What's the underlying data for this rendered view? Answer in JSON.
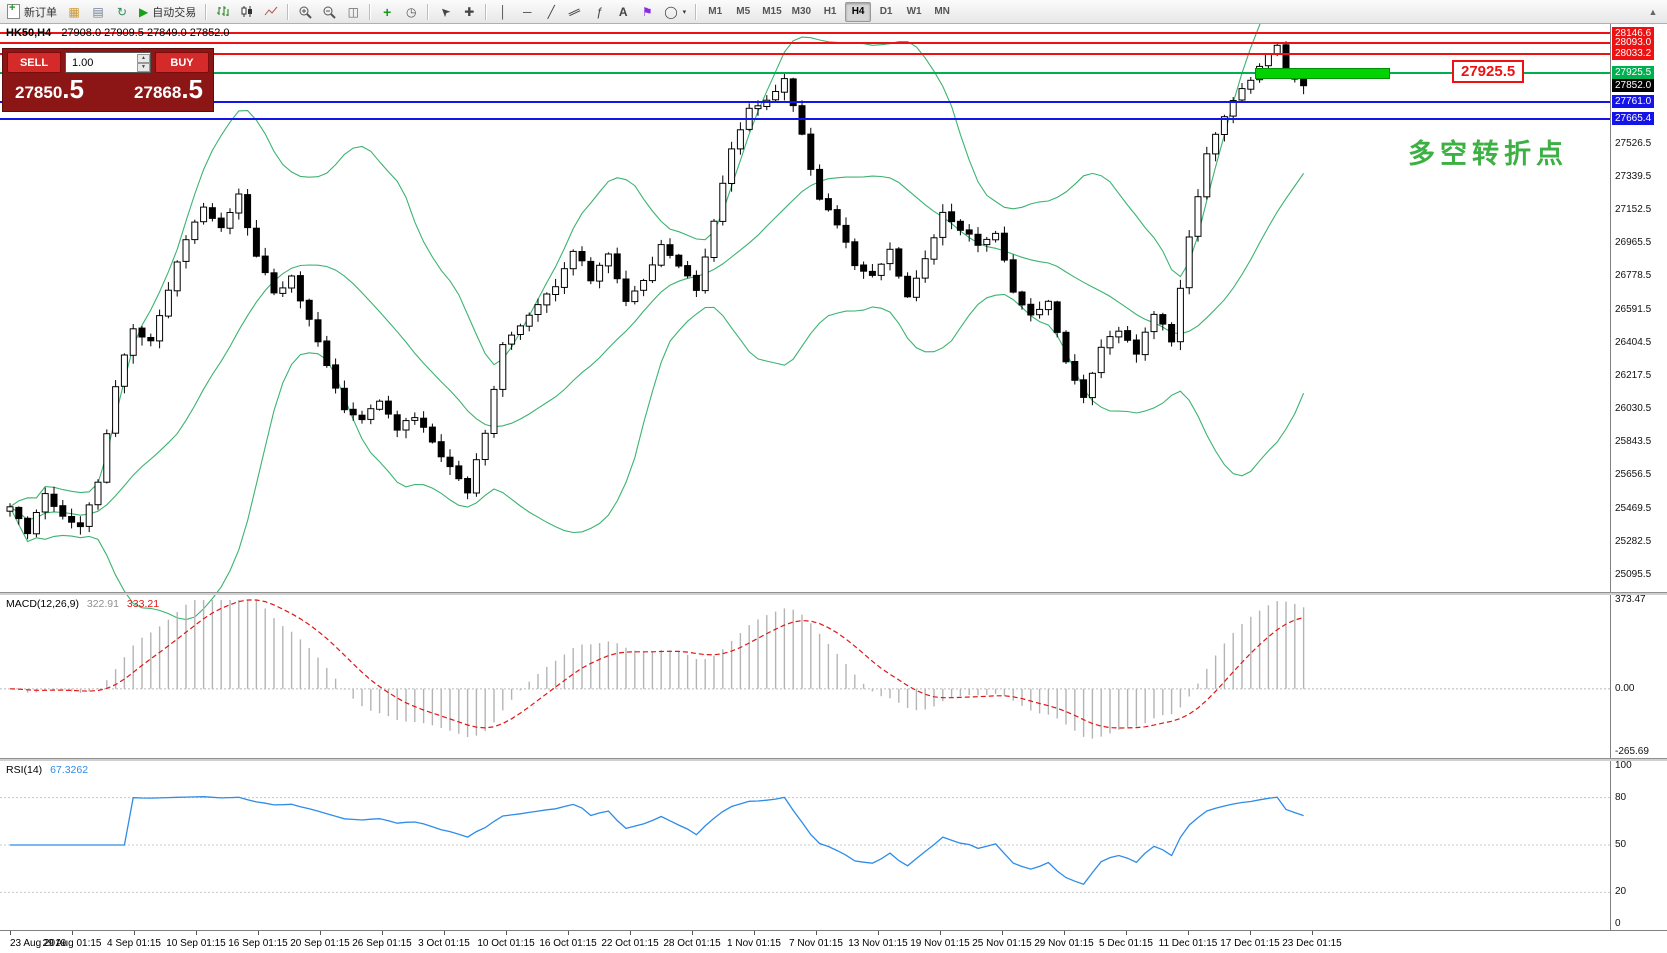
{
  "toolbar": {
    "new_order_label": "新订单",
    "autotrading_label": "自动交易",
    "timeframes": [
      "M1",
      "M5",
      "M15",
      "M30",
      "H1",
      "H4",
      "D1",
      "W1",
      "MN"
    ],
    "active_timeframe": "H4"
  },
  "chart": {
    "symbol_title": "HK50,H4",
    "ohlc_text": "27908.0 27909.5 27849.0 27852.0",
    "annotation_text": "多空转折点",
    "annotation_color": "#3cb043",
    "price_callout": "27925.5",
    "callout_color": "#ee1111",
    "highlight": {
      "price": 27925.5,
      "color": "#00d300"
    }
  },
  "trade_panel": {
    "sell_label": "SELL",
    "buy_label": "BUY",
    "volume": "1.00",
    "panel_color": "#8c1616",
    "button_color": "#d42a2a",
    "sell_price": {
      "main": "27850",
      "big": ".5"
    },
    "buy_price": {
      "main": "27868",
      "big": ".5"
    }
  },
  "levels": [
    {
      "label": "28146.6",
      "price": 28146.6,
      "color": "#ee1111",
      "type": "line"
    },
    {
      "label": "28093.0",
      "price": 28093.0,
      "color": "#ee1111",
      "type": "line"
    },
    {
      "label": "28033.2",
      "price": 28033.2,
      "color": "#ee1111",
      "type": "line"
    },
    {
      "label": "27925.5",
      "price": 27925.5,
      "color": "#00b050",
      "type": "line"
    },
    {
      "label": "27852.0",
      "price": 27852.0,
      "color": "#000000",
      "type": "bid"
    },
    {
      "label": "27761.0",
      "price": 27761.0,
      "color": "#1414e8",
      "type": "line"
    },
    {
      "label": "27665.4",
      "price": 27665.4,
      "color": "#1414e8",
      "type": "line"
    }
  ],
  "main_scale": {
    "max_price": 28200,
    "min_price": 25000,
    "gridlines": [
      "27526.5",
      "27339.5",
      "27152.5",
      "26965.5",
      "26778.5",
      "26591.5",
      "26404.5",
      "26217.5",
      "26030.5",
      "25843.5",
      "25656.5",
      "25469.5",
      "25282.5",
      "25095.5"
    ]
  },
  "macd_panel": {
    "name": "MACD(12,26,9)",
    "value1": "322.91",
    "value2": "333.21",
    "value1_color": "#909090",
    "histogram_color": "#b4b4b4",
    "signal_color": "#e01616",
    "scale": [
      "373.47",
      "0.00",
      "-265.69"
    ]
  },
  "rsi_panel": {
    "name": "RSI(14)",
    "value": "67.3262",
    "line_color": "#2f8ce8",
    "scale": [
      "100",
      "80",
      "50",
      "20",
      "0"
    ],
    "levels": [
      80,
      50,
      20
    ]
  },
  "time_axis": [
    "23 Aug 2019",
    "29 Aug 01:15",
    "4 Sep 01:15",
    "10 Sep 01:15",
    "16 Sep 01:15",
    "20 Sep 01:15",
    "26 Sep 01:15",
    "3 Oct 01:15",
    "10 Oct 01:15",
    "16 Oct 01:15",
    "22 Oct 01:15",
    "28 Oct 01:15",
    "1 Nov 01:15",
    "7 Nov 01:15",
    "13 Nov 01:15",
    "19 Nov 01:15",
    "25 Nov 01:15",
    "29 Nov 01:15",
    "5 Dec 01:15",
    "11 Dec 01:15",
    "17 Dec 01:15",
    "23 Dec 01:15"
  ],
  "chart_data": {
    "type": "candlestick",
    "symbol": "HK50",
    "timeframe": "H4",
    "last_ohlc": {
      "open": 27908.0,
      "high": 27909.5,
      "low": 27849.0,
      "close": 27852.0
    },
    "bid": 27850.5,
    "ask": 27868.5,
    "y_range": [
      25000,
      28200
    ],
    "indicators": [
      "Bollinger Bands (20,2)",
      "MACD(12,26,9)",
      "RSI(14)"
    ],
    "bollinger_color": "#3cb371",
    "price_path": [
      [
        0,
        25480
      ],
      [
        2,
        25340
      ],
      [
        4,
        25560
      ],
      [
        6,
        25430
      ],
      [
        8,
        25380
      ],
      [
        10,
        25620
      ],
      [
        12,
        26160
      ],
      [
        14,
        26480
      ],
      [
        16,
        26420
      ],
      [
        18,
        26700
      ],
      [
        20,
        26990
      ],
      [
        22,
        27180
      ],
      [
        24,
        27060
      ],
      [
        26,
        27230
      ],
      [
        28,
        26890
      ],
      [
        30,
        26680
      ],
      [
        32,
        26770
      ],
      [
        34,
        26530
      ],
      [
        36,
        26280
      ],
      [
        38,
        26030
      ],
      [
        40,
        25960
      ],
      [
        42,
        26090
      ],
      [
        44,
        25910
      ],
      [
        46,
        25990
      ],
      [
        48,
        25840
      ],
      [
        50,
        25700
      ],
      [
        52,
        25570
      ],
      [
        54,
        25910
      ],
      [
        56,
        26390
      ],
      [
        58,
        26490
      ],
      [
        60,
        26610
      ],
      [
        62,
        26730
      ],
      [
        64,
        26930
      ],
      [
        66,
        26770
      ],
      [
        68,
        26890
      ],
      [
        70,
        26650
      ],
      [
        72,
        26750
      ],
      [
        74,
        26970
      ],
      [
        76,
        26830
      ],
      [
        78,
        26710
      ],
      [
        80,
        27090
      ],
      [
        82,
        27490
      ],
      [
        84,
        27710
      ],
      [
        86,
        27770
      ],
      [
        88,
        27890
      ],
      [
        90,
        27570
      ],
      [
        92,
        27210
      ],
      [
        94,
        27070
      ],
      [
        96,
        26850
      ],
      [
        98,
        26770
      ],
      [
        100,
        26930
      ],
      [
        102,
        26650
      ],
      [
        104,
        26870
      ],
      [
        106,
        27130
      ],
      [
        108,
        27050
      ],
      [
        110,
        26950
      ],
      [
        112,
        27030
      ],
      [
        114,
        26690
      ],
      [
        116,
        26550
      ],
      [
        118,
        26630
      ],
      [
        120,
        26290
      ],
      [
        122,
        26100
      ],
      [
        124,
        26370
      ],
      [
        126,
        26480
      ],
      [
        128,
        26350
      ],
      [
        130,
        26570
      ],
      [
        132,
        26420
      ],
      [
        134,
        26990
      ],
      [
        136,
        27470
      ],
      [
        138,
        27690
      ],
      [
        140,
        27830
      ],
      [
        142,
        27960
      ],
      [
        144,
        28080
      ],
      [
        145,
        27930
      ],
      [
        146,
        27890
      ],
      [
        147,
        27852
      ]
    ]
  }
}
